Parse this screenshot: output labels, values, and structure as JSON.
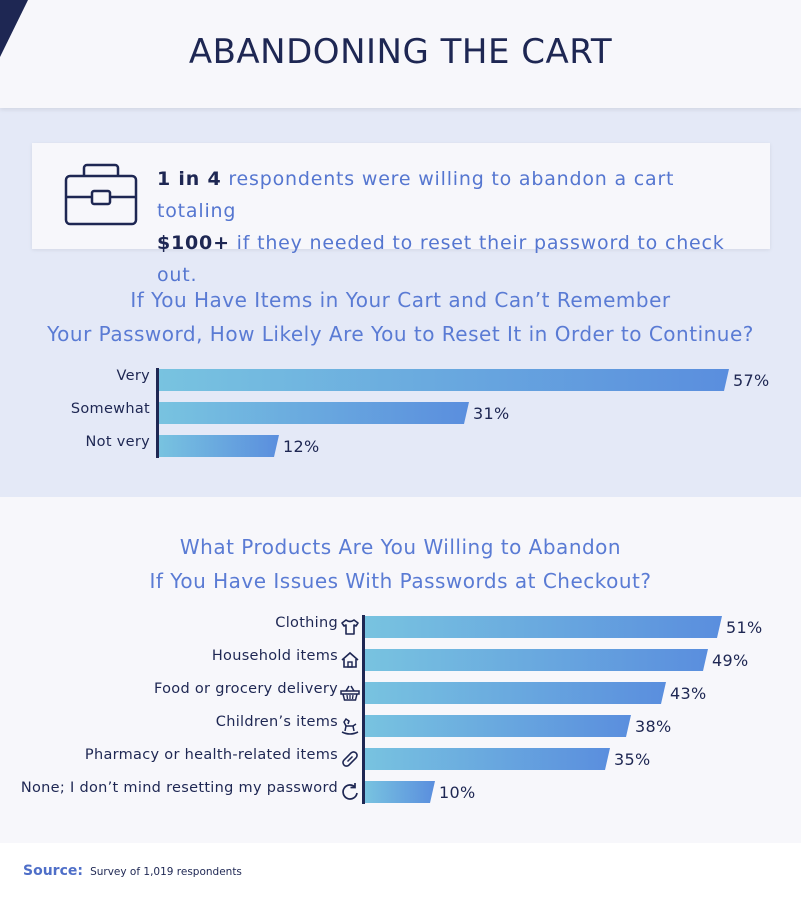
{
  "page_title": "ABANDONING THE CART",
  "callout": {
    "icon": "briefcase-icon",
    "line1_bold": "1 in 4",
    "line1_rest": "respondents were willing to abandon a cart totaling",
    "line2_bold": "$100+",
    "line2_rest": "if they needed to reset their password to check out."
  },
  "colors": {
    "title": "#1e2753",
    "accent": "#5a7bd4",
    "bar_start": "#78c3e0",
    "bar_end": "#5a8ede",
    "band": "#e4e9f7"
  },
  "chart_data": [
    {
      "type": "bar",
      "orientation": "horizontal",
      "title_line1": "If You Have Items in Your Cart and Can’t Remember",
      "title_line2": "Your Password, How Likely Are You to Reset It in Order to Continue?",
      "categories": [
        "Very",
        "Somewhat",
        "Not very"
      ],
      "values": [
        57,
        31,
        12
      ],
      "value_labels": [
        "57%",
        "31%",
        "12%"
      ],
      "unit": "%"
    },
    {
      "type": "bar",
      "orientation": "horizontal",
      "title_line1": "What Products Are You Willing to Abandon",
      "title_line2": "If You Have Issues With Passwords at Checkout?",
      "categories": [
        "Clothing",
        "Household items",
        "Food or grocery delivery",
        "Children’s items",
        "Pharmacy or health-related items",
        "None; I don’t mind resetting my password"
      ],
      "icons": [
        "shirt-icon",
        "house-icon",
        "basket-icon",
        "rocking-horse-icon",
        "pill-icon",
        "refresh-icon"
      ],
      "values": [
        51,
        49,
        43,
        38,
        35,
        10
      ],
      "value_labels": [
        "51%",
        "49%",
        "43%",
        "38%",
        "35%",
        "10%"
      ],
      "unit": "%"
    }
  ],
  "source": {
    "label": "Source:",
    "text": "Survey of 1,019 respondents"
  }
}
